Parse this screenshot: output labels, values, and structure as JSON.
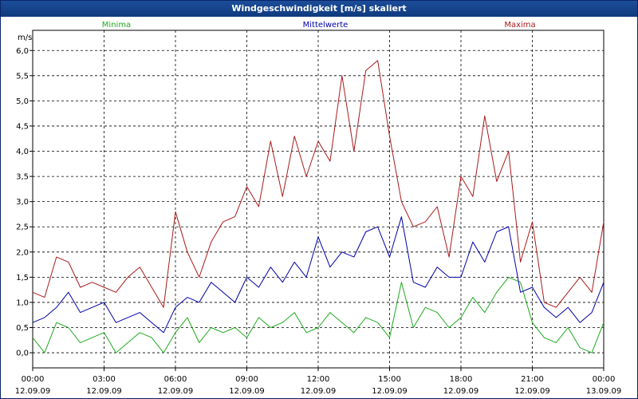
{
  "window": {
    "title": "Windgeschwindigkeit [m/s] skaliert"
  },
  "colors": {
    "minima": "#1faa1f",
    "mittelwerte": "#0000aa",
    "maxima": "#aa1a1a",
    "grid": "#000000"
  },
  "chart_data": {
    "type": "line",
    "title": "Windgeschwindigkeit [m/s] skaliert",
    "ylabel": "m/s",
    "xlabel": "",
    "ylim": [
      -0.3,
      6.4
    ],
    "xlim": [
      0,
      24
    ],
    "y_ticks": [
      "0,0",
      "0,5",
      "1,0",
      "1,5",
      "2,0",
      "2,5",
      "3,0",
      "3,5",
      "4,0",
      "4,5",
      "5,0",
      "5,5",
      "6,0"
    ],
    "x_ticks": [
      {
        "time": "00:00",
        "date": "12.09.09"
      },
      {
        "time": "03:00",
        "date": "12.09.09"
      },
      {
        "time": "06:00",
        "date": "12.09.09"
      },
      {
        "time": "09:00",
        "date": "12.09.09"
      },
      {
        "time": "12:00",
        "date": "12.09.09"
      },
      {
        "time": "15:00",
        "date": "12.09.09"
      },
      {
        "time": "18:00",
        "date": "12.09.09"
      },
      {
        "time": "21:00",
        "date": "12.09.09"
      },
      {
        "time": "00:00",
        "date": "13.09.09"
      }
    ],
    "x_hours": [
      0.0,
      0.5,
      1.0,
      1.5,
      2.0,
      2.5,
      3.0,
      3.5,
      4.0,
      4.5,
      5.0,
      5.5,
      6.0,
      6.5,
      7.0,
      7.5,
      8.0,
      8.5,
      9.0,
      9.5,
      10.0,
      10.5,
      11.0,
      11.5,
      12.0,
      12.5,
      13.0,
      13.5,
      14.0,
      14.5,
      15.0,
      15.5,
      16.0,
      16.5,
      17.0,
      17.5,
      18.0,
      18.5,
      19.0,
      19.5,
      20.0,
      20.5,
      21.0,
      21.5,
      22.0,
      22.5,
      23.0,
      23.5,
      24.0
    ],
    "series": [
      {
        "name": "Minima",
        "values": [
          0.3,
          0.0,
          0.6,
          0.5,
          0.2,
          0.3,
          0.4,
          0.0,
          0.2,
          0.4,
          0.3,
          0.0,
          0.4,
          0.7,
          0.2,
          0.5,
          0.4,
          0.5,
          0.3,
          0.7,
          0.5,
          0.6,
          0.8,
          0.4,
          0.5,
          0.8,
          0.6,
          0.4,
          0.7,
          0.6,
          0.3,
          1.4,
          0.5,
          0.9,
          0.8,
          0.5,
          0.7,
          1.1,
          0.8,
          1.2,
          1.5,
          1.4,
          0.6,
          0.3,
          0.2,
          0.5,
          0.1,
          0.0,
          0.6
        ]
      },
      {
        "name": "Mittelwerte",
        "values": [
          0.6,
          0.7,
          0.9,
          1.2,
          0.8,
          0.9,
          1.0,
          0.6,
          0.7,
          0.8,
          0.6,
          0.4,
          0.9,
          1.1,
          1.0,
          1.4,
          1.2,
          1.0,
          1.5,
          1.3,
          1.7,
          1.4,
          1.8,
          1.5,
          2.3,
          1.7,
          2.0,
          1.9,
          2.4,
          2.5,
          1.9,
          2.7,
          1.4,
          1.3,
          1.7,
          1.5,
          1.5,
          2.2,
          1.8,
          2.4,
          2.5,
          1.2,
          1.3,
          0.9,
          0.7,
          0.9,
          0.6,
          0.8,
          1.4
        ]
      },
      {
        "name": "Maxima",
        "values": [
          1.2,
          1.1,
          1.9,
          1.8,
          1.3,
          1.4,
          1.3,
          1.2,
          1.5,
          1.7,
          1.3,
          0.9,
          2.8,
          2.0,
          1.5,
          2.2,
          2.6,
          2.7,
          3.3,
          2.9,
          4.2,
          3.1,
          4.3,
          3.5,
          4.2,
          3.8,
          5.5,
          4.0,
          5.6,
          5.8,
          4.3,
          3.0,
          2.5,
          2.6,
          2.9,
          1.9,
          3.5,
          3.1,
          4.7,
          3.4,
          4.0,
          1.8,
          2.6,
          1.0,
          0.9,
          1.2,
          1.5,
          1.2,
          2.6
        ]
      }
    ]
  }
}
